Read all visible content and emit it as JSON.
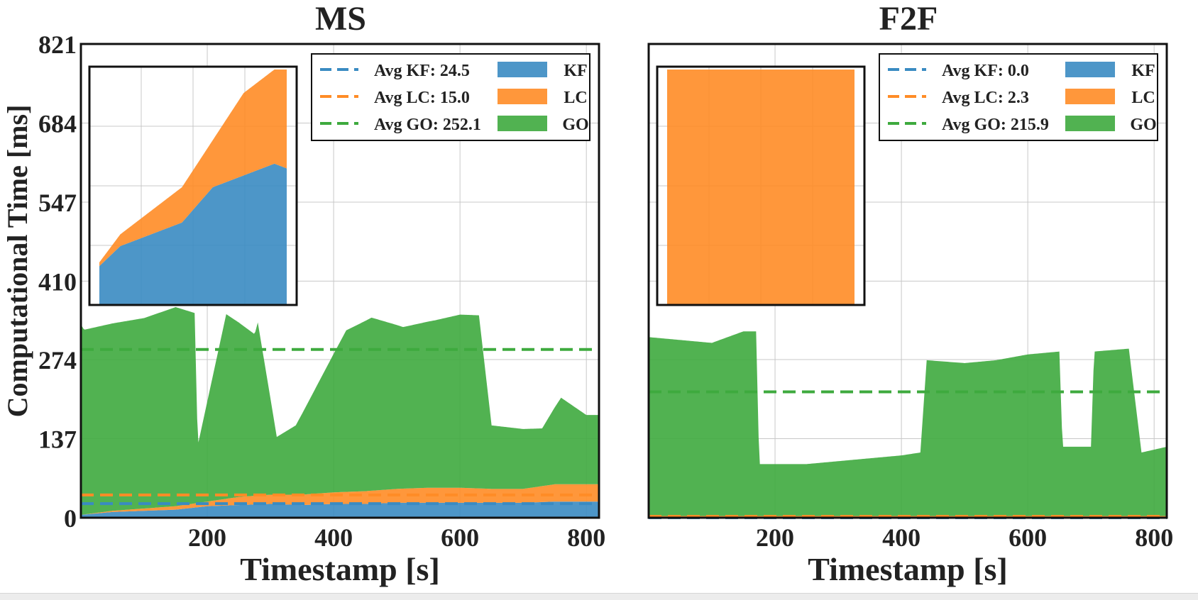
{
  "figure": {
    "ylabel": "Computational Time [ms]",
    "colors": {
      "KF": "#3a8bc2",
      "LC": "#ff8c26",
      "GO": "#3eaa3e",
      "grid": "#c8c8c8"
    }
  },
  "chart_data": [
    {
      "type": "area",
      "title": "MS",
      "xlabel": "Timestamp [s]",
      "ylabel": "Computational Time [ms]",
      "xlim": [
        0,
        820
      ],
      "ylim": [
        0,
        821
      ],
      "xticks": [
        200,
        400,
        600,
        800
      ],
      "yticks": [
        0,
        137,
        274,
        410,
        547,
        684,
        821
      ],
      "stacked": true,
      "series": [
        {
          "name": "KF",
          "x": [
            0,
            50,
            100,
            150,
            200,
            250,
            300,
            350,
            400,
            450,
            500,
            550,
            600,
            650,
            700,
            750,
            820
          ],
          "values": [
            5,
            10,
            12,
            14,
            20,
            22,
            24,
            22,
            24,
            24,
            26,
            26,
            26,
            26,
            26,
            28,
            28
          ]
        },
        {
          "name": "LC",
          "x": [
            0,
            50,
            100,
            150,
            200,
            250,
            300,
            350,
            400,
            450,
            500,
            550,
            600,
            650,
            700,
            750,
            820
          ],
          "values": [
            0,
            2,
            4,
            6,
            8,
            14,
            16,
            18,
            20,
            22,
            24,
            26,
            26,
            24,
            24,
            30,
            30
          ]
        },
        {
          "name": "GO",
          "x": [
            0,
            5,
            100,
            150,
            180,
            185,
            230,
            275,
            280,
            310,
            340,
            350,
            380,
            420,
            460,
            510,
            560,
            600,
            630,
            650,
            730,
            760,
            800,
            820
          ],
          "values": [
            330,
            320,
            330,
            345,
            330,
            100,
            320,
            280,
            300,
            100,
            120,
            140,
            200,
            280,
            300,
            280,
            290,
            300,
            300,
            110,
            100,
            150,
            120,
            120
          ]
        }
      ],
      "reference_lines": [
        {
          "label": "Avg KF: 24.5",
          "value": 24.5,
          "series": "KF"
        },
        {
          "label": "Avg LC: 15.0",
          "value": 39.5,
          "series": "LC"
        },
        {
          "label": "Avg GO: 252.1",
          "value": 291.6,
          "series": "GO"
        }
      ],
      "legend": {
        "placement": "top-right",
        "entries": [
          "Avg KF: 24.5",
          "Avg LC: 15.0",
          "Avg GO: 252.1",
          "KF",
          "LC",
          "GO"
        ]
      },
      "inset": {
        "placement": "top-left",
        "series": [
          "KF",
          "LC"
        ]
      },
      "grid": true
    },
    {
      "type": "area",
      "title": "F2F",
      "xlabel": "Timestamp [s]",
      "ylabel": "Computational Time [ms]",
      "xlim": [
        0,
        820
      ],
      "ylim": [
        0,
        821
      ],
      "xticks": [
        200,
        400,
        600,
        800
      ],
      "yticks": [
        0,
        137,
        274,
        410,
        547,
        684,
        821
      ],
      "stacked": true,
      "series": [
        {
          "name": "KF",
          "x": [
            0,
            820
          ],
          "values": [
            0,
            0
          ]
        },
        {
          "name": "LC",
          "x": [
            0,
            820
          ],
          "values": [
            3,
            3
          ]
        },
        {
          "name": "GO",
          "x": [
            0,
            50,
            100,
            150,
            170,
            175,
            250,
            300,
            350,
            400,
            430,
            440,
            500,
            550,
            600,
            650,
            655,
            700,
            705,
            760,
            780,
            820
          ],
          "values": [
            310,
            305,
            300,
            320,
            320,
            90,
            90,
            95,
            100,
            105,
            110,
            270,
            265,
            270,
            280,
            285,
            120,
            120,
            285,
            290,
            110,
            120
          ]
        }
      ],
      "reference_lines": [
        {
          "label": "Avg KF: 0.0",
          "value": 0.0,
          "series": "KF"
        },
        {
          "label": "Avg LC: 2.3",
          "value": 2.3,
          "series": "LC"
        },
        {
          "label": "Avg GO: 215.9",
          "value": 218.2,
          "series": "GO"
        }
      ],
      "legend": {
        "placement": "top-right",
        "entries": [
          "Avg KF: 0.0",
          "Avg LC: 2.3",
          "Avg GO: 215.9",
          "KF",
          "LC",
          "GO"
        ]
      },
      "inset": {
        "placement": "top-left",
        "series": [
          "LC"
        ]
      },
      "grid": true
    }
  ]
}
